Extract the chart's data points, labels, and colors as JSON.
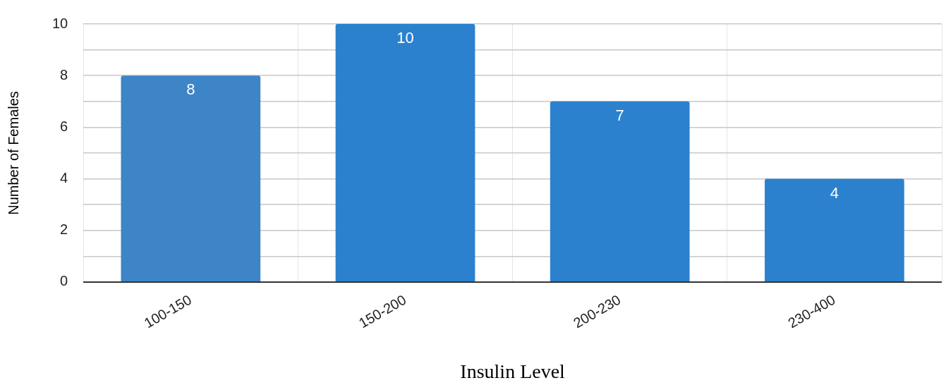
{
  "chart_data": {
    "type": "bar",
    "xlabel": "Insulin Level",
    "ylabel": "Number of Females",
    "categories": [
      "100-150",
      "150-200",
      "200-230",
      "230-400"
    ],
    "values": [
      8,
      10,
      7,
      4
    ],
    "colors": [
      "#3d85c6",
      "#2b81cd",
      "#2b81cd",
      "#2b81cd"
    ],
    "ylim": [
      0,
      10
    ],
    "yticks": [
      0,
      {
        "value": 1,
        "label": null
      },
      2,
      {
        "value": 3,
        "label": null
      },
      4,
      {
        "value": 5,
        "label": null
      },
      6,
      {
        "value": 7,
        "label": null
      },
      8,
      {
        "value": 9,
        "label": null
      },
      10
    ],
    "grid": true,
    "legend": false,
    "data_labels": true
  }
}
